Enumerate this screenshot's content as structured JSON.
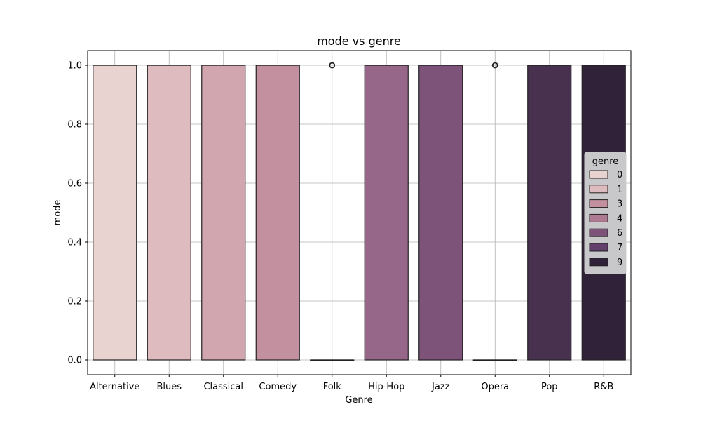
{
  "chart_data": {
    "type": "box",
    "title": "mode vs genre",
    "xlabel": "Genre",
    "ylabel": "mode",
    "ylim": [
      -0.05,
      1.05
    ],
    "yticks": [
      0.0,
      0.2,
      0.4,
      0.6,
      0.8,
      1.0
    ],
    "grid": true,
    "categories": [
      "Alternative",
      "Blues",
      "Classical",
      "Comedy",
      "Folk",
      "Hip-Hop",
      "Jazz",
      "Opera",
      "Pop",
      "R&B"
    ],
    "boxes": [
      {
        "category": "Alternative",
        "hue": "0",
        "q1": 0.0,
        "median": 1.0,
        "q3": 1.0,
        "whisker_low": 0.0,
        "whisker_high": 1.0,
        "outliers": []
      },
      {
        "category": "Blues",
        "hue": "1",
        "q1": 0.0,
        "median": 1.0,
        "q3": 1.0,
        "whisker_low": 0.0,
        "whisker_high": 1.0,
        "outliers": []
      },
      {
        "category": "Classical",
        "hue": "2",
        "q1": 0.0,
        "median": 1.0,
        "q3": 1.0,
        "whisker_low": 0.0,
        "whisker_high": 1.0,
        "outliers": []
      },
      {
        "category": "Comedy",
        "hue": "3",
        "q1": 0.0,
        "median": 1.0,
        "q3": 1.0,
        "whisker_low": 0.0,
        "whisker_high": 1.0,
        "outliers": []
      },
      {
        "category": "Folk",
        "hue": "4",
        "q1": 0.0,
        "median": 0.0,
        "q3": 0.0,
        "whisker_low": 0.0,
        "whisker_high": 0.0,
        "outliers": [
          1.0
        ]
      },
      {
        "category": "Hip-Hop",
        "hue": "5",
        "q1": 0.0,
        "median": 1.0,
        "q3": 1.0,
        "whisker_low": 0.0,
        "whisker_high": 1.0,
        "outliers": []
      },
      {
        "category": "Jazz",
        "hue": "6",
        "q1": 0.0,
        "median": 1.0,
        "q3": 1.0,
        "whisker_low": 0.0,
        "whisker_high": 1.0,
        "outliers": []
      },
      {
        "category": "Opera",
        "hue": "7",
        "q1": 0.0,
        "median": 0.0,
        "q3": 0.0,
        "whisker_low": 0.0,
        "whisker_high": 0.0,
        "outliers": [
          1.0
        ]
      },
      {
        "category": "Pop",
        "hue": "8",
        "q1": 0.0,
        "median": 1.0,
        "q3": 1.0,
        "whisker_low": 0.0,
        "whisker_high": 1.0,
        "outliers": []
      },
      {
        "category": "R&B",
        "hue": "9",
        "q1": 0.0,
        "median": 1.0,
        "q3": 1.0,
        "whisker_low": 0.0,
        "whisker_high": 1.0,
        "outliers": []
      }
    ],
    "palette": {
      "0": "#e8d3d0",
      "1": "#debbbf",
      "2": "#d2a6ae",
      "3": "#c2909f",
      "4": "#af7b93",
      "5": "#966788",
      "6": "#7d537a",
      "7": "#62406b",
      "8": "#48314f",
      "9": "#2f2239"
    },
    "legend": {
      "title": "genre",
      "location": "center-right",
      "entries": [
        {
          "label": "0",
          "hue": "0"
        },
        {
          "label": "1",
          "hue": "1"
        },
        {
          "label": "3",
          "hue": "3"
        },
        {
          "label": "4",
          "hue": "4"
        },
        {
          "label": "6",
          "hue": "6"
        },
        {
          "label": "7",
          "hue": "7"
        },
        {
          "label": "9",
          "hue": "9"
        }
      ]
    }
  }
}
